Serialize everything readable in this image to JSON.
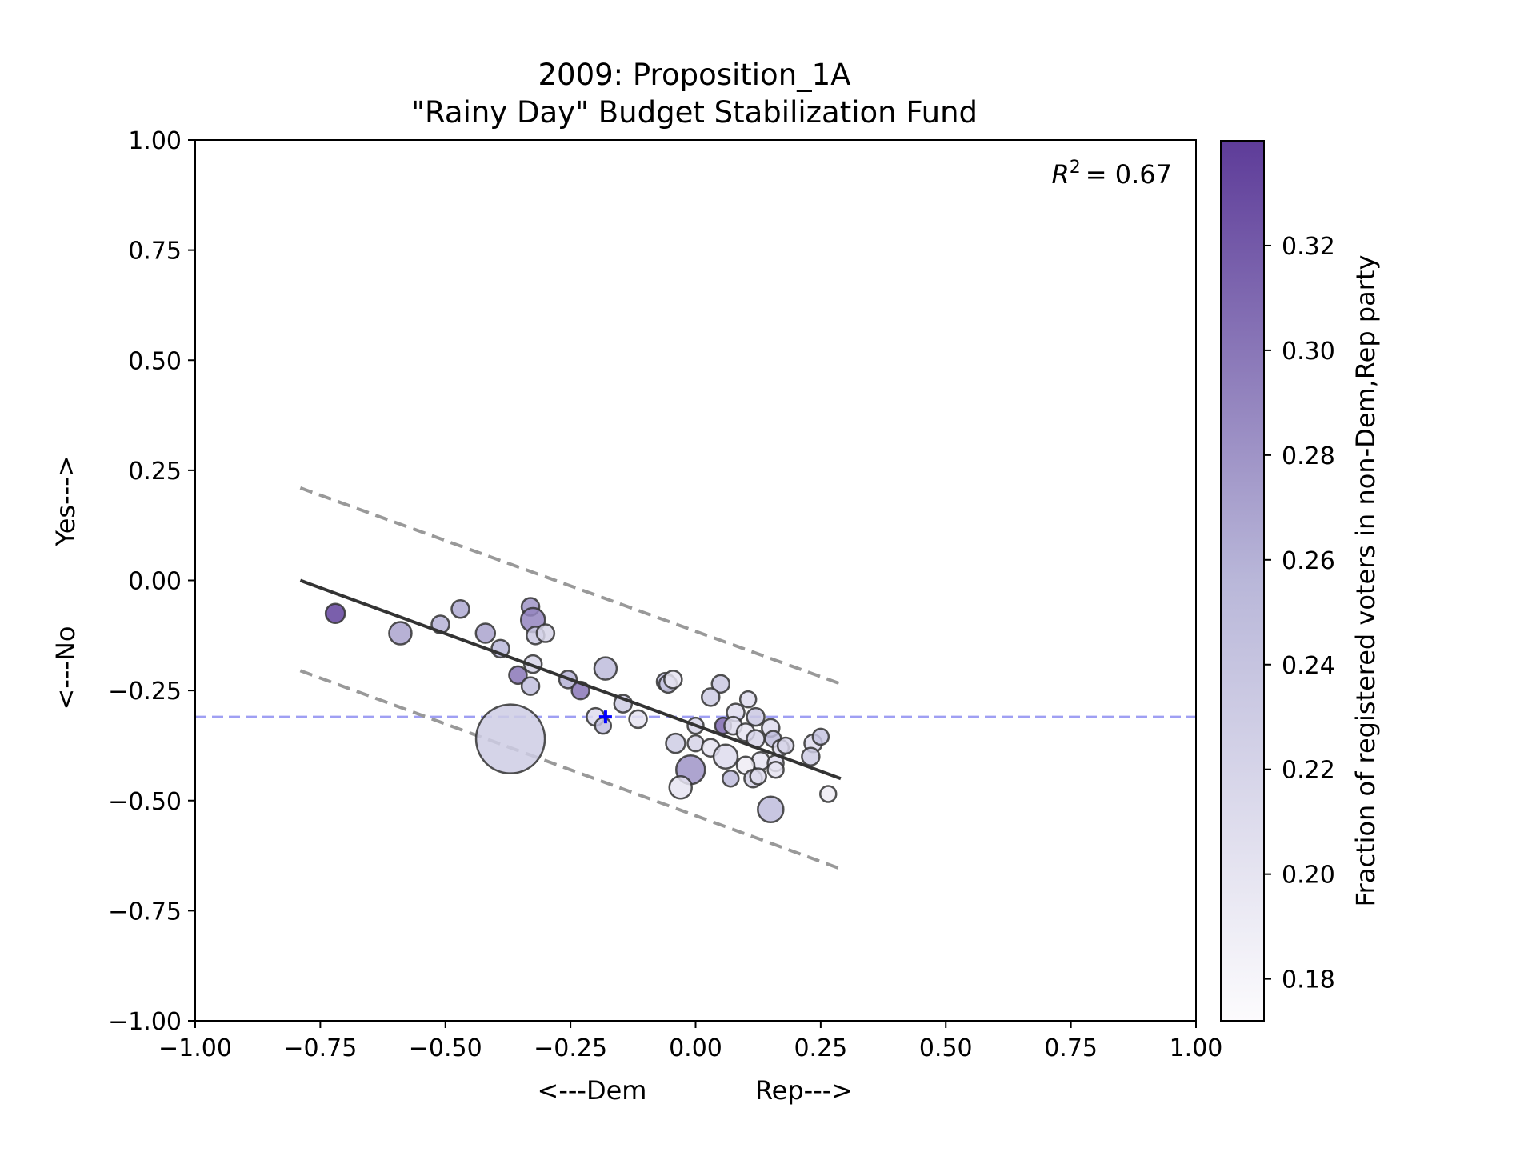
{
  "chart_data": {
    "type": "scatter",
    "title": "2009: Proposition_1A",
    "subtitle": "\"Rainy Day\" Budget Stabilization Fund",
    "xlabel_left": "<---Dem",
    "xlabel_right": "Rep--->",
    "ylabel_bottom": "<---No",
    "ylabel_top": "Yes--->",
    "xlim": [
      -1.0,
      1.0
    ],
    "ylim": [
      -1.0,
      1.0
    ],
    "xticks": [
      "−1.00",
      "−0.75",
      "−0.50",
      "−0.25",
      "0.00",
      "0.25",
      "0.50",
      "0.75",
      "1.00"
    ],
    "yticks": [
      "−1.00",
      "−0.75",
      "−0.50",
      "−0.25",
      "0.00",
      "0.25",
      "0.50",
      "0.75",
      "1.00"
    ],
    "annotation": "R² = 0.67",
    "annotation_var": "R",
    "annotation_sup": "2",
    "annotation_value": "= 0.67",
    "grid": false,
    "colorbar": {
      "label": "Fraction of registered voters in non-Dem,Rep party",
      "min": 0.172,
      "max": 0.34,
      "ticks": [
        0.18,
        0.2,
        0.22,
        0.24,
        0.26,
        0.28,
        0.3,
        0.32
      ],
      "tick_labels": [
        "0.18",
        "0.20",
        "0.22",
        "0.24",
        "0.26",
        "0.28",
        "0.30",
        "0.32"
      ],
      "color_low": "#fcfbfd",
      "color_high": "#3f007d"
    },
    "fit_line": {
      "x": [
        -0.79,
        0.29
      ],
      "y": [
        0.0,
        -0.45
      ],
      "color": "#333333"
    },
    "band_upper": {
      "x": [
        -0.79,
        0.29
      ],
      "y": [
        0.21,
        -0.235
      ],
      "color": "#999999"
    },
    "band_lower": {
      "x": [
        -0.79,
        0.29
      ],
      "y": [
        -0.205,
        -0.655
      ],
      "color": "#999999"
    },
    "reference_line": {
      "y": -0.31,
      "color": "#8080f0"
    },
    "marker": {
      "x": -0.18,
      "y": -0.31,
      "color": "#0000ff"
    },
    "points": [
      {
        "x": -0.72,
        "y": -0.075,
        "r": 12,
        "c": 0.335
      },
      {
        "x": -0.59,
        "y": -0.12,
        "r": 14,
        "c": 0.27
      },
      {
        "x": -0.51,
        "y": -0.1,
        "r": 11,
        "c": 0.26
      },
      {
        "x": -0.47,
        "y": -0.065,
        "r": 11,
        "c": 0.265
      },
      {
        "x": -0.42,
        "y": -0.12,
        "r": 12,
        "c": 0.27
      },
      {
        "x": -0.39,
        "y": -0.155,
        "r": 11,
        "c": 0.255
      },
      {
        "x": -0.33,
        "y": -0.06,
        "r": 11,
        "c": 0.28
      },
      {
        "x": -0.325,
        "y": -0.09,
        "r": 15,
        "c": 0.29
      },
      {
        "x": -0.32,
        "y": -0.125,
        "r": 11,
        "c": 0.235
      },
      {
        "x": -0.3,
        "y": -0.12,
        "r": 11,
        "c": 0.22
      },
      {
        "x": -0.325,
        "y": -0.19,
        "r": 11,
        "c": 0.22
      },
      {
        "x": -0.355,
        "y": -0.215,
        "r": 11,
        "c": 0.3
      },
      {
        "x": -0.33,
        "y": -0.24,
        "r": 11,
        "c": 0.245
      },
      {
        "x": -0.255,
        "y": -0.225,
        "r": 11,
        "c": 0.26
      },
      {
        "x": -0.23,
        "y": -0.25,
        "r": 11,
        "c": 0.3
      },
      {
        "x": -0.18,
        "y": -0.2,
        "r": 14,
        "c": 0.25
      },
      {
        "x": -0.145,
        "y": -0.28,
        "r": 11,
        "c": 0.23
      },
      {
        "x": -0.115,
        "y": -0.315,
        "r": 11,
        "c": 0.2
      },
      {
        "x": -0.2,
        "y": -0.31,
        "r": 11,
        "c": 0.21
      },
      {
        "x": -0.185,
        "y": -0.33,
        "r": 10,
        "c": 0.245
      },
      {
        "x": -0.37,
        "y": -0.36,
        "r": 43,
        "c": 0.23
      },
      {
        "x": -0.06,
        "y": -0.23,
        "r": 11,
        "c": 0.25
      },
      {
        "x": -0.055,
        "y": -0.235,
        "r": 11,
        "c": 0.24
      },
      {
        "x": -0.045,
        "y": -0.225,
        "r": 11,
        "c": 0.2
      },
      {
        "x": 0.05,
        "y": -0.235,
        "r": 11,
        "c": 0.235
      },
      {
        "x": 0.03,
        "y": -0.265,
        "r": 11,
        "c": 0.23
      },
      {
        "x": 0.105,
        "y": -0.27,
        "r": 10,
        "c": 0.21
      },
      {
        "x": 0.08,
        "y": -0.3,
        "r": 11,
        "c": 0.21
      },
      {
        "x": 0.12,
        "y": -0.31,
        "r": 11,
        "c": 0.235
      },
      {
        "x": 0.0,
        "y": -0.33,
        "r": 10,
        "c": 0.22
      },
      {
        "x": 0.055,
        "y": -0.33,
        "r": 10,
        "c": 0.31
      },
      {
        "x": 0.075,
        "y": -0.33,
        "r": 11,
        "c": 0.21
      },
      {
        "x": 0.1,
        "y": -0.345,
        "r": 11,
        "c": 0.2
      },
      {
        "x": 0.15,
        "y": -0.335,
        "r": 11,
        "c": 0.21
      },
      {
        "x": 0.12,
        "y": -0.36,
        "r": 11,
        "c": 0.22
      },
      {
        "x": 0.155,
        "y": -0.36,
        "r": 10,
        "c": 0.25
      },
      {
        "x": -0.04,
        "y": -0.37,
        "r": 12,
        "c": 0.23
      },
      {
        "x": 0.0,
        "y": -0.37,
        "r": 10,
        "c": 0.22
      },
      {
        "x": 0.03,
        "y": -0.38,
        "r": 11,
        "c": 0.2
      },
      {
        "x": 0.17,
        "y": -0.38,
        "r": 10,
        "c": 0.21
      },
      {
        "x": 0.18,
        "y": -0.375,
        "r": 10,
        "c": 0.22
      },
      {
        "x": 0.235,
        "y": -0.37,
        "r": 11,
        "c": 0.21
      },
      {
        "x": 0.25,
        "y": -0.355,
        "r": 10,
        "c": 0.24
      },
      {
        "x": 0.23,
        "y": -0.4,
        "r": 11,
        "c": 0.23
      },
      {
        "x": 0.06,
        "y": -0.4,
        "r": 15,
        "c": 0.21
      },
      {
        "x": 0.13,
        "y": -0.41,
        "r": 11,
        "c": 0.2
      },
      {
        "x": 0.16,
        "y": -0.415,
        "r": 10,
        "c": 0.21
      },
      {
        "x": 0.1,
        "y": -0.42,
        "r": 11,
        "c": 0.19
      },
      {
        "x": 0.16,
        "y": -0.43,
        "r": 10,
        "c": 0.2
      },
      {
        "x": -0.01,
        "y": -0.43,
        "r": 18,
        "c": 0.28
      },
      {
        "x": 0.07,
        "y": -0.45,
        "r": 10,
        "c": 0.25
      },
      {
        "x": 0.115,
        "y": -0.45,
        "r": 11,
        "c": 0.22
      },
      {
        "x": 0.125,
        "y": -0.445,
        "r": 10,
        "c": 0.21
      },
      {
        "x": -0.03,
        "y": -0.47,
        "r": 14,
        "c": 0.2
      },
      {
        "x": 0.15,
        "y": -0.52,
        "r": 16,
        "c": 0.25
      },
      {
        "x": 0.265,
        "y": -0.485,
        "r": 10,
        "c": 0.19
      }
    ]
  }
}
